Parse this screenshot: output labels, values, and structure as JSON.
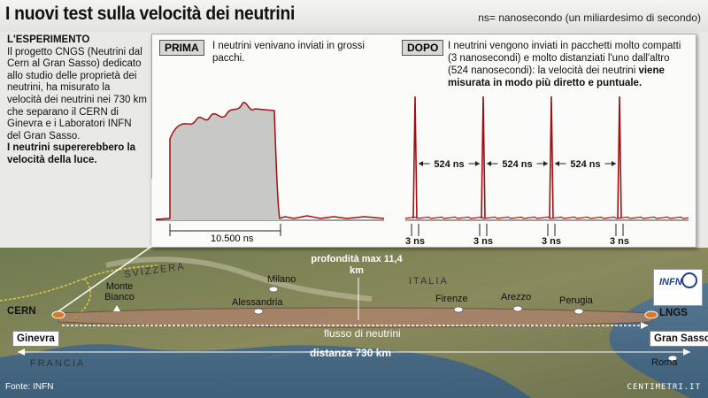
{
  "header": {
    "title": "I nuovi test sulla velocità dei neutrini",
    "ns_note": "ns= nanosecondo (un miliardesimo di secondo)"
  },
  "sidebar": {
    "heading": "L'ESPERIMENTO",
    "body": "Il progetto CNGS (Neutrini dal Cern al Gran Sasso) dedicato allo studio delle proprietà dei neutrini, ha misurato la velocità dei neutrini nei 730 km che separano il CERN di Ginevra e i Laboratori INFN del Gran Sasso.",
    "conclusion": "I neutrini supererebbero la velocità della luce."
  },
  "panel": {
    "prima": {
      "tag": "PRIMA",
      "text": "I neutrini venivano inviati in grossi pacchi.",
      "duration": "10.500 ns"
    },
    "dopo": {
      "tag": "DOPO",
      "text_normal": "I neutrini vengono inviati in pacchetti molto compatti (3 nanosecondi) e molto distanziati l'uno dall'altro (524 nanosecondi): la velocità dei neutrini ",
      "text_bold": "viene misurata in modo più diretto e puntuale.",
      "gaps": [
        "524 ns",
        "524 ns",
        "524 ns"
      ],
      "pulses": [
        "3 ns",
        "3 ns",
        "3 ns",
        "3 ns"
      ]
    }
  },
  "map": {
    "cern": "CERN",
    "ginevra": "Ginevra",
    "lngs": "LNGS",
    "gran_sasso": "Gran Sasso",
    "svizzera": "SVIZZERA",
    "italia": "ITALIA",
    "francia": "FRANCIA",
    "monte_bianco": "Monte Bianco",
    "milano": "Milano",
    "alessandria": "Alessandria",
    "firenze": "Firenze",
    "arezzo": "Arezzo",
    "perugia": "Perugia",
    "roma": "Roma",
    "profondita": "profondità max 11,4 km",
    "flusso": "flusso di neutrini",
    "distanza": "distanza 730 km",
    "infn_logo": "INFN",
    "source": "Fonte: INFN",
    "credit": "CENTIMETRI.IT"
  },
  "colors": {
    "pulse": "#a01010",
    "fill": "#c8c8c6",
    "marker": "#d97a2a",
    "beam": "#c9302c"
  }
}
